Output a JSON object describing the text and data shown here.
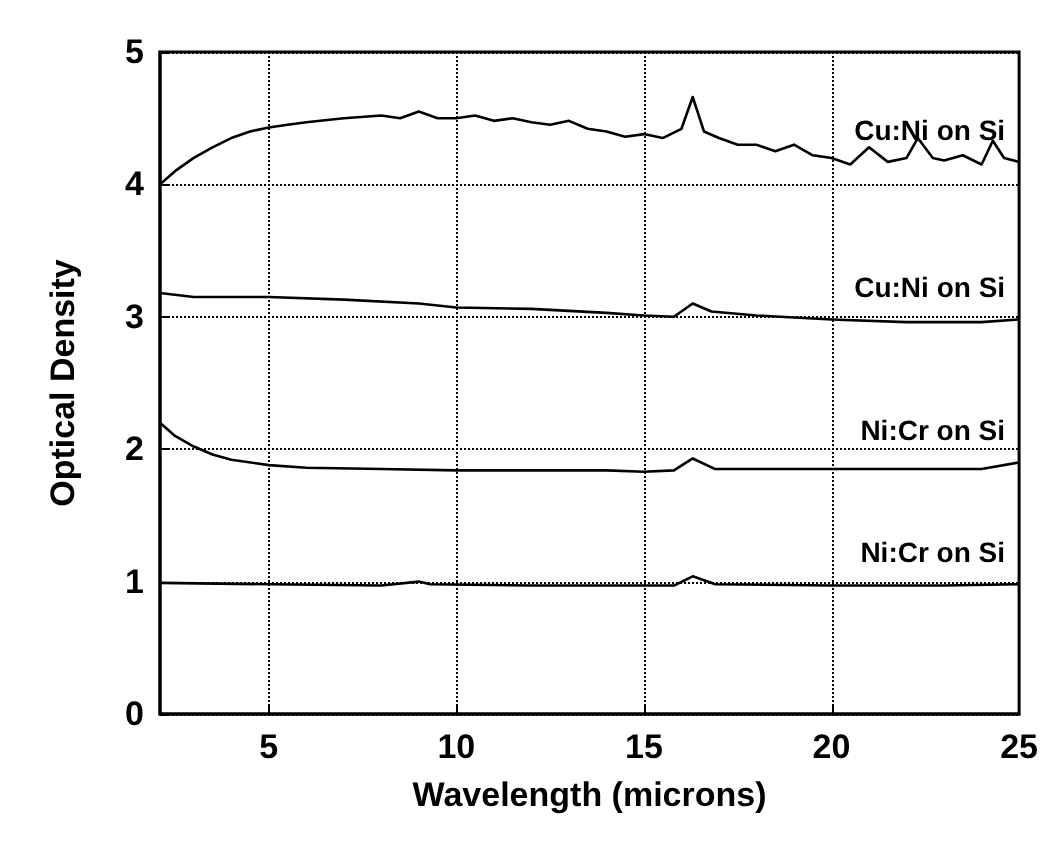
{
  "chart_data": {
    "type": "line",
    "xlabel": "Wavelength (microns)",
    "ylabel": "Optical Density",
    "xlim": [
      2.1,
      25
    ],
    "xticks": [
      5,
      10,
      15,
      20,
      25
    ],
    "ylim": [
      0,
      5
    ],
    "yticks": [
      0,
      1,
      2,
      3,
      4,
      5
    ],
    "grid": true,
    "legend": false,
    "marker": "none",
    "line_style": "solid",
    "series": [
      {
        "name": "Cu:Ni on Si",
        "color": "#000000",
        "x": [
          2.1,
          2.5,
          3,
          3.5,
          4,
          4.5,
          5,
          5.5,
          6,
          7,
          8,
          8.5,
          9,
          9.5,
          10,
          10.5,
          11,
          11.5,
          12,
          12.5,
          13,
          13.5,
          14,
          14.5,
          15,
          15.5,
          16,
          16.3,
          16.6,
          17,
          17.5,
          18,
          18.5,
          19,
          19.5,
          20,
          20.5,
          21,
          21.5,
          22,
          22.3,
          22.7,
          23,
          23.5,
          24,
          24.3,
          24.6,
          25
        ],
        "values": [
          4.0,
          4.1,
          4.2,
          4.28,
          4.35,
          4.4,
          4.43,
          4.45,
          4.47,
          4.5,
          4.52,
          4.5,
          4.55,
          4.5,
          4.5,
          4.52,
          4.48,
          4.5,
          4.47,
          4.45,
          4.48,
          4.42,
          4.4,
          4.36,
          4.38,
          4.35,
          4.42,
          4.66,
          4.4,
          4.35,
          4.3,
          4.3,
          4.25,
          4.3,
          4.22,
          4.2,
          4.15,
          4.28,
          4.17,
          4.2,
          4.35,
          4.2,
          4.18,
          4.22,
          4.15,
          4.33,
          4.2,
          4.17
        ]
      },
      {
        "name": "Cu:Ni on Si",
        "color": "#000000",
        "x": [
          2.1,
          3,
          5,
          7,
          9,
          10,
          12,
          14,
          15,
          15.8,
          16.3,
          16.8,
          18,
          20,
          22,
          24,
          25
        ],
        "values": [
          3.18,
          3.15,
          3.15,
          3.13,
          3.1,
          3.07,
          3.06,
          3.03,
          3.01,
          3.0,
          3.1,
          3.04,
          3.01,
          2.98,
          2.96,
          2.96,
          2.98
        ]
      },
      {
        "name": "Ni:Cr on Si",
        "color": "#000000",
        "x": [
          2.1,
          2.5,
          3,
          3.5,
          4,
          5,
          6,
          8,
          10,
          12,
          14,
          15,
          15.8,
          16.3,
          16.9,
          18,
          20,
          22,
          24,
          25
        ],
        "values": [
          2.2,
          2.1,
          2.02,
          1.96,
          1.92,
          1.88,
          1.86,
          1.85,
          1.84,
          1.84,
          1.84,
          1.83,
          1.84,
          1.93,
          1.85,
          1.85,
          1.85,
          1.85,
          1.85,
          1.9
        ]
      },
      {
        "name": "Ni:Cr on Si",
        "color": "#000000",
        "x": [
          2.1,
          5,
          8,
          9,
          9.3,
          12,
          15,
          15.8,
          16.3,
          16.9,
          20,
          23,
          25
        ],
        "values": [
          0.99,
          0.98,
          0.97,
          1.0,
          0.98,
          0.97,
          0.97,
          0.97,
          1.04,
          0.98,
          0.97,
          0.97,
          0.98
        ]
      }
    ]
  }
}
